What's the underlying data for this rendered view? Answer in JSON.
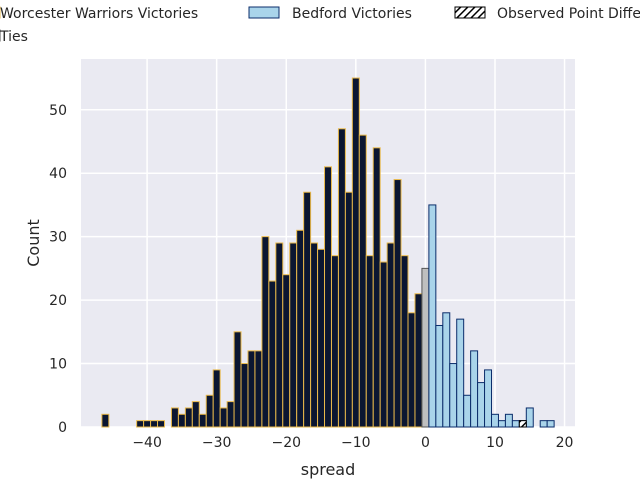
{
  "chart_data": {
    "type": "bar",
    "xlabel": "spread",
    "ylabel": "Count",
    "xlim": [
      -49.5,
      21.5
    ],
    "ylim": [
      0,
      58
    ],
    "xticks": [
      -40,
      -30,
      -20,
      -10,
      0,
      10,
      20
    ],
    "yticks": [
      0,
      10,
      20,
      30,
      40,
      50
    ],
    "grid": true,
    "legend_placement": "top-left",
    "legend": [
      {
        "label": "Worcester Warriors Victories",
        "color": "#0b1631",
        "edge": "#e8b84a"
      },
      {
        "label": "Bedford Victories",
        "color": "#a9d4ea",
        "edge": "#0b2d6b"
      },
      {
        "label": "Observed Point Difference",
        "color": "#000000",
        "pattern": "hatch"
      },
      {
        "label": "Ties",
        "color": "#bfbfbf",
        "edge": "#555555"
      }
    ],
    "series": [
      {
        "name": "Worcester Warriors Victories",
        "color": "#0b1631",
        "edge": "#e8b84a",
        "x": [
          -46,
          -41,
          -40,
          -39,
          -38,
          -36,
          -35,
          -34,
          -33,
          -32,
          -31,
          -30,
          -29,
          -28,
          -27,
          -26,
          -25,
          -24,
          -23,
          -22,
          -21,
          -20,
          -19,
          -18,
          -17,
          -16,
          -15,
          -14,
          -13,
          -12,
          -11,
          -10,
          -9,
          -8,
          -7,
          -6,
          -5,
          -4,
          -3,
          -2,
          -1
        ],
        "values": [
          2,
          1,
          1,
          1,
          1,
          3,
          2,
          3,
          4,
          2,
          5,
          9,
          3,
          4,
          15,
          10,
          12,
          12,
          30,
          23,
          29,
          24,
          29,
          31,
          37,
          29,
          28,
          41,
          27,
          47,
          37,
          55,
          46,
          27,
          44,
          26,
          29,
          39,
          27,
          18,
          21
        ]
      },
      {
        "name": "Ties",
        "color": "#bfbfbf",
        "edge": "#555555",
        "x": [
          0
        ],
        "values": [
          25
        ]
      },
      {
        "name": "Bedford Victories",
        "color": "#a9d4ea",
        "edge": "#0b2d6b",
        "x": [
          1,
          2,
          3,
          4,
          5,
          6,
          7,
          8,
          9,
          10,
          11,
          12,
          13,
          14,
          15,
          17,
          18
        ],
        "values": [
          35,
          16,
          18,
          10,
          17,
          5,
          12,
          7,
          9,
          2,
          1,
          2,
          1,
          1,
          3,
          1,
          1
        ]
      }
    ],
    "observed_point_difference": {
      "x": 14,
      "value": 1
    }
  }
}
